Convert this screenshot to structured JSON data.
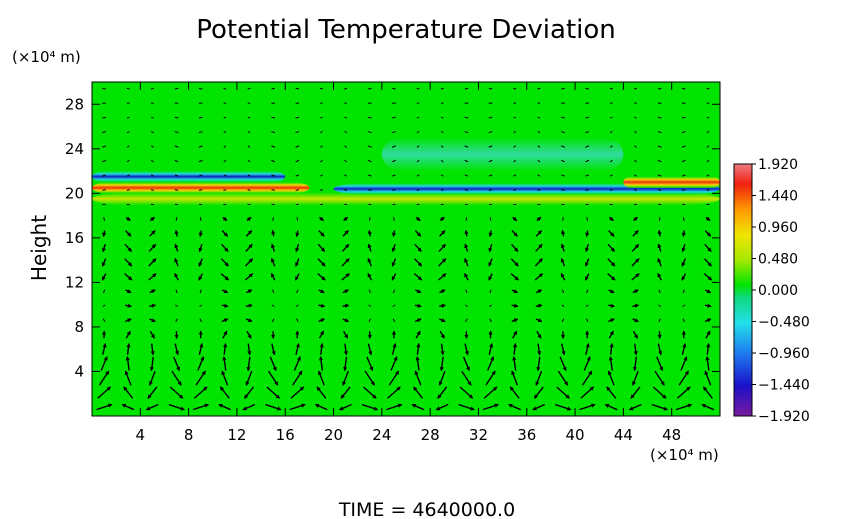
{
  "chart_data": {
    "type": "heatmap",
    "title": "Potential Temperature Deviation",
    "ylabel": "Height",
    "x_unit_label": "(×10⁴ m)",
    "y_unit_label": "(×10⁴ m)",
    "footer": "TIME  =  4640000.0",
    "xlim": [
      0,
      52
    ],
    "ylim": [
      0,
      30
    ],
    "x_ticks": [
      4,
      8,
      12,
      16,
      20,
      24,
      28,
      32,
      36,
      40,
      44,
      48
    ],
    "y_ticks": [
      4,
      8,
      12,
      16,
      20,
      24,
      28
    ],
    "colorbar": {
      "min": -1.92,
      "max": 1.92,
      "tick_labels": [
        "1.920",
        "1.440",
        "0.960",
        "0.480",
        "0.000",
        "−0.480",
        "−0.960",
        "−1.440",
        "−1.920"
      ],
      "tick_values": [
        1.92,
        1.44,
        0.96,
        0.48,
        0.0,
        -0.48,
        -0.96,
        -1.44,
        -1.92
      ]
    },
    "background_value": 0.0,
    "features": [
      {
        "band": "warm",
        "y_center": 20.5,
        "value": 1.9,
        "x_range": [
          0,
          18
        ]
      },
      {
        "band": "cold",
        "y_center": 21.5,
        "value": -1.5,
        "x_range": [
          0,
          16
        ]
      },
      {
        "band": "cold",
        "y_center": 20.4,
        "value": -1.3,
        "x_range": [
          20,
          52
        ]
      },
      {
        "band": "warm",
        "y_center": 21.0,
        "value": 1.6,
        "x_range": [
          44,
          52
        ]
      },
      {
        "band": "cyan-weak",
        "y_center": 23.5,
        "value": -0.25,
        "x_range": [
          24,
          44
        ]
      },
      {
        "band": "yellow-weak",
        "y_center": 19.5,
        "value": 0.5,
        "x_range": [
          0,
          52
        ]
      }
    ]
  }
}
